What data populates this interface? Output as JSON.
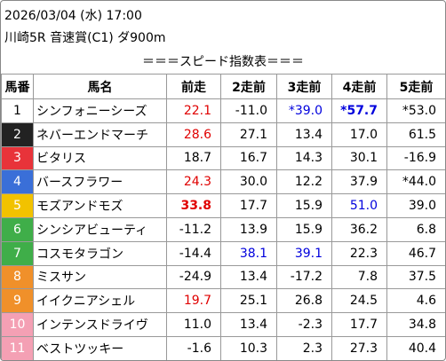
{
  "header": {
    "datetime": "2026/03/04 (水) 17:00",
    "race": "川崎5R 音速賞(C1) ダ900m",
    "title": "＝＝＝スピード指数表＝＝＝"
  },
  "table": {
    "columns": [
      "馬番",
      "馬名",
      "前走",
      "2走前",
      "3走前",
      "4走前",
      "5走前"
    ],
    "rows": [
      {
        "no": "1",
        "badge": "#ffffff",
        "badge_text": "#000000",
        "name": "シンフォニーシーズ",
        "cells": [
          {
            "text": "22.1",
            "color": "#e00000"
          },
          {
            "text": "-11.0",
            "color": "#000000"
          },
          {
            "text": "*39.0",
            "color": "#0000dd"
          },
          {
            "text": "*57.7",
            "color": "#0000dd",
            "bold": true
          },
          {
            "text": "*53.0",
            "color": "#000000"
          }
        ]
      },
      {
        "no": "2",
        "badge": "#222222",
        "badge_text": "#ffffff",
        "name": "ネバーエンドマーチ",
        "cells": [
          {
            "text": "28.6",
            "color": "#e00000"
          },
          {
            "text": "27.1",
            "color": "#000000"
          },
          {
            "text": "13.4",
            "color": "#000000"
          },
          {
            "text": "17.0",
            "color": "#000000"
          },
          {
            "text": "61.5",
            "color": "#000000"
          }
        ]
      },
      {
        "no": "3",
        "badge": "#e8333a",
        "badge_text": "#ffffff",
        "name": "ビタリス",
        "cells": [
          {
            "text": "18.7",
            "color": "#000000"
          },
          {
            "text": "16.7",
            "color": "#000000"
          },
          {
            "text": "14.3",
            "color": "#000000"
          },
          {
            "text": "30.1",
            "color": "#000000"
          },
          {
            "text": "-16.9",
            "color": "#000000"
          }
        ]
      },
      {
        "no": "4",
        "badge": "#3a6fd8",
        "badge_text": "#ffffff",
        "name": "バースフラワー",
        "cells": [
          {
            "text": "24.3",
            "color": "#e00000"
          },
          {
            "text": "30.0",
            "color": "#000000"
          },
          {
            "text": "12.2",
            "color": "#000000"
          },
          {
            "text": "37.9",
            "color": "#000000"
          },
          {
            "text": "*44.0",
            "color": "#000000"
          }
        ]
      },
      {
        "no": "5",
        "badge": "#f2c200",
        "badge_text": "#ffffff",
        "name": "モズアンドモズ",
        "cells": [
          {
            "text": "33.8",
            "color": "#e00000",
            "bold": true
          },
          {
            "text": "17.7",
            "color": "#000000"
          },
          {
            "text": "15.9",
            "color": "#000000"
          },
          {
            "text": "51.0",
            "color": "#0000dd"
          },
          {
            "text": "39.0",
            "color": "#000000"
          }
        ]
      },
      {
        "no": "6",
        "badge": "#3fae49",
        "badge_text": "#ffffff",
        "name": "シンシアビューティ",
        "cells": [
          {
            "text": "-11.2",
            "color": "#000000"
          },
          {
            "text": "13.9",
            "color": "#000000"
          },
          {
            "text": "15.9",
            "color": "#000000"
          },
          {
            "text": "36.2",
            "color": "#000000"
          },
          {
            "text": "6.8",
            "color": "#000000"
          }
        ]
      },
      {
        "no": "7",
        "badge": "#3fae49",
        "badge_text": "#ffffff",
        "name": "コスモタラゴン",
        "cells": [
          {
            "text": "-14.4",
            "color": "#000000"
          },
          {
            "text": "38.1",
            "color": "#0000dd"
          },
          {
            "text": "39.1",
            "color": "#0000dd"
          },
          {
            "text": "22.3",
            "color": "#000000"
          },
          {
            "text": "46.7",
            "color": "#000000"
          }
        ]
      },
      {
        "no": "8",
        "badge": "#f0902a",
        "badge_text": "#ffffff",
        "name": "ミスサン",
        "cells": [
          {
            "text": "-24.9",
            "color": "#000000"
          },
          {
            "text": "13.4",
            "color": "#000000"
          },
          {
            "text": "-17.2",
            "color": "#000000"
          },
          {
            "text": "7.8",
            "color": "#000000"
          },
          {
            "text": "37.5",
            "color": "#000000"
          }
        ]
      },
      {
        "no": "9",
        "badge": "#f0902a",
        "badge_text": "#ffffff",
        "name": "イイクニアシェル",
        "cells": [
          {
            "text": "19.7",
            "color": "#e00000"
          },
          {
            "text": "25.1",
            "color": "#000000"
          },
          {
            "text": "26.8",
            "color": "#000000"
          },
          {
            "text": "24.5",
            "color": "#000000"
          },
          {
            "text": "4.6",
            "color": "#000000"
          }
        ]
      },
      {
        "no": "10",
        "badge": "#f4a0b4",
        "badge_text": "#ffffff",
        "name": "インテンスドライヴ",
        "cells": [
          {
            "text": "11.0",
            "color": "#000000"
          },
          {
            "text": "13.4",
            "color": "#000000"
          },
          {
            "text": "-2.3",
            "color": "#000000"
          },
          {
            "text": "17.7",
            "color": "#000000"
          },
          {
            "text": "34.8",
            "color": "#000000"
          }
        ]
      },
      {
        "no": "11",
        "badge": "#f4a0b4",
        "badge_text": "#ffffff",
        "name": "ベストツッキー",
        "cells": [
          {
            "text": "-1.6",
            "color": "#000000"
          },
          {
            "text": "10.3",
            "color": "#000000"
          },
          {
            "text": "2.3",
            "color": "#000000"
          },
          {
            "text": "27.3",
            "color": "#000000"
          },
          {
            "text": "40.4",
            "color": "#000000"
          }
        ]
      }
    ]
  }
}
